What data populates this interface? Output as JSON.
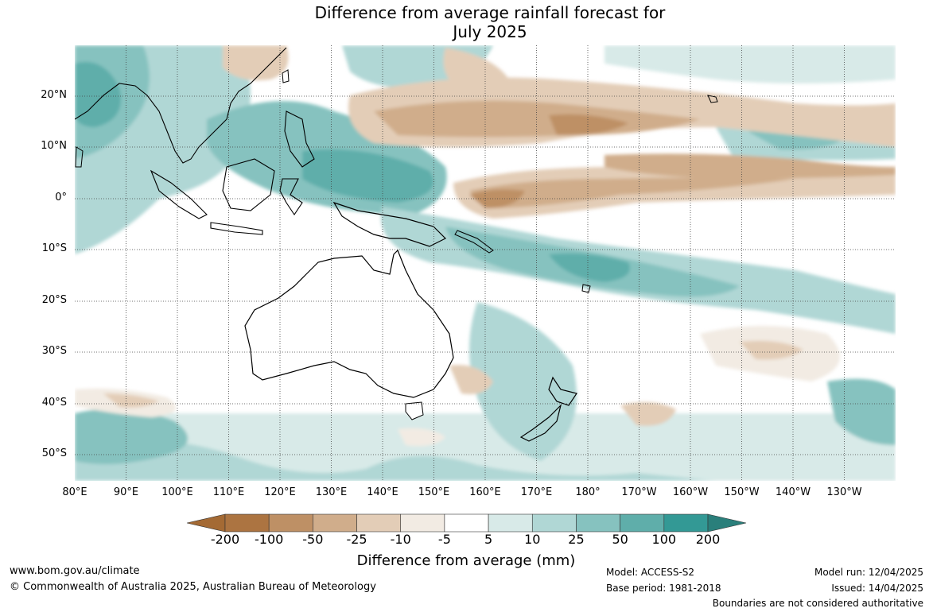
{
  "title": {
    "line1": "Difference from average rainfall forecast for",
    "line2": "July 2025"
  },
  "map": {
    "latitude_labels": [
      "20°N",
      "10°N",
      "0°",
      "10°S",
      "20°S",
      "30°S",
      "40°S",
      "50°S"
    ],
    "longitude_labels": [
      "80°E",
      "90°E",
      "100°E",
      "110°E",
      "120°E",
      "130°E",
      "140°E",
      "150°E",
      "160°E",
      "170°E",
      "180°",
      "170°W",
      "160°W",
      "150°W",
      "140°W",
      "130°W"
    ]
  },
  "colorbar": {
    "title": "Difference from average (mm)",
    "tick_labels": [
      "-200",
      "-100",
      "-50",
      "-25",
      "-10",
      "-5",
      "5",
      "10",
      "25",
      "50",
      "100",
      "200"
    ],
    "colors": {
      "under": "#a46a34",
      "bins": [
        "#ac7441",
        "#be9065",
        "#d0ad8b",
        "#e3cdb7",
        "#f2ebe3",
        "#ffffff",
        "#d8eae8",
        "#b0d7d5",
        "#86c2bf",
        "#5faeaa",
        "#339995"
      ],
      "over": "#2a7f7b"
    }
  },
  "footer": {
    "website": "www.bom.gov.au/climate",
    "copyright": "© Commonwealth of Australia 2025, Australian Bureau of Meteorology",
    "model": "Model: ACCESS-S2",
    "base_period": "Base period: 1981-2018",
    "model_run": "Model run: 12/04/2025",
    "issued": "Issued: 14/04/2025",
    "disclaimer": "Boundaries are not considered authoritative"
  }
}
